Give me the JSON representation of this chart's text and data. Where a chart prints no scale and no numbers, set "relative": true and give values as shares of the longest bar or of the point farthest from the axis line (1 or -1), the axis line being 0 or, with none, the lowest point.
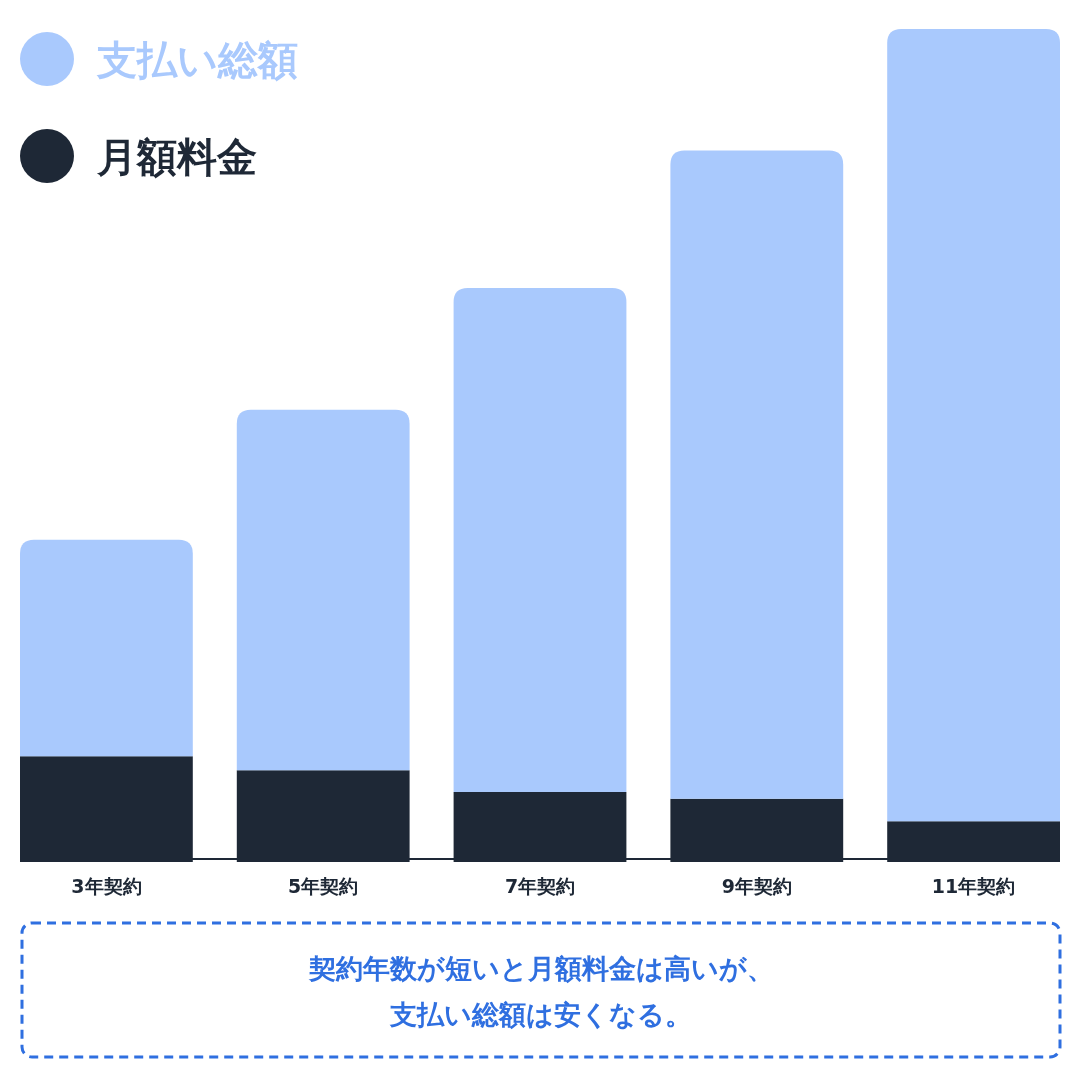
{
  "chart_data": {
    "type": "bar",
    "relative": true,
    "stacked": true,
    "legend": "top left",
    "categories": [
      "3年契約",
      "5年契約",
      "7年契約",
      "9年契約",
      "11年契約"
    ],
    "series": [
      {
        "name": "月額料金",
        "color": "#1e2836",
        "values": [
          0.127,
          0.11,
          0.084,
          0.076,
          0.049
        ]
      },
      {
        "name": "支払い総額",
        "color": "#a9c9fd",
        "values": [
          0.26,
          0.433,
          0.605,
          0.778,
          0.951
        ]
      }
    ],
    "annotations": [
      "契約年数が短いと月額料金は高いが、",
      "支払い総額は安くなる。"
    ]
  }
}
